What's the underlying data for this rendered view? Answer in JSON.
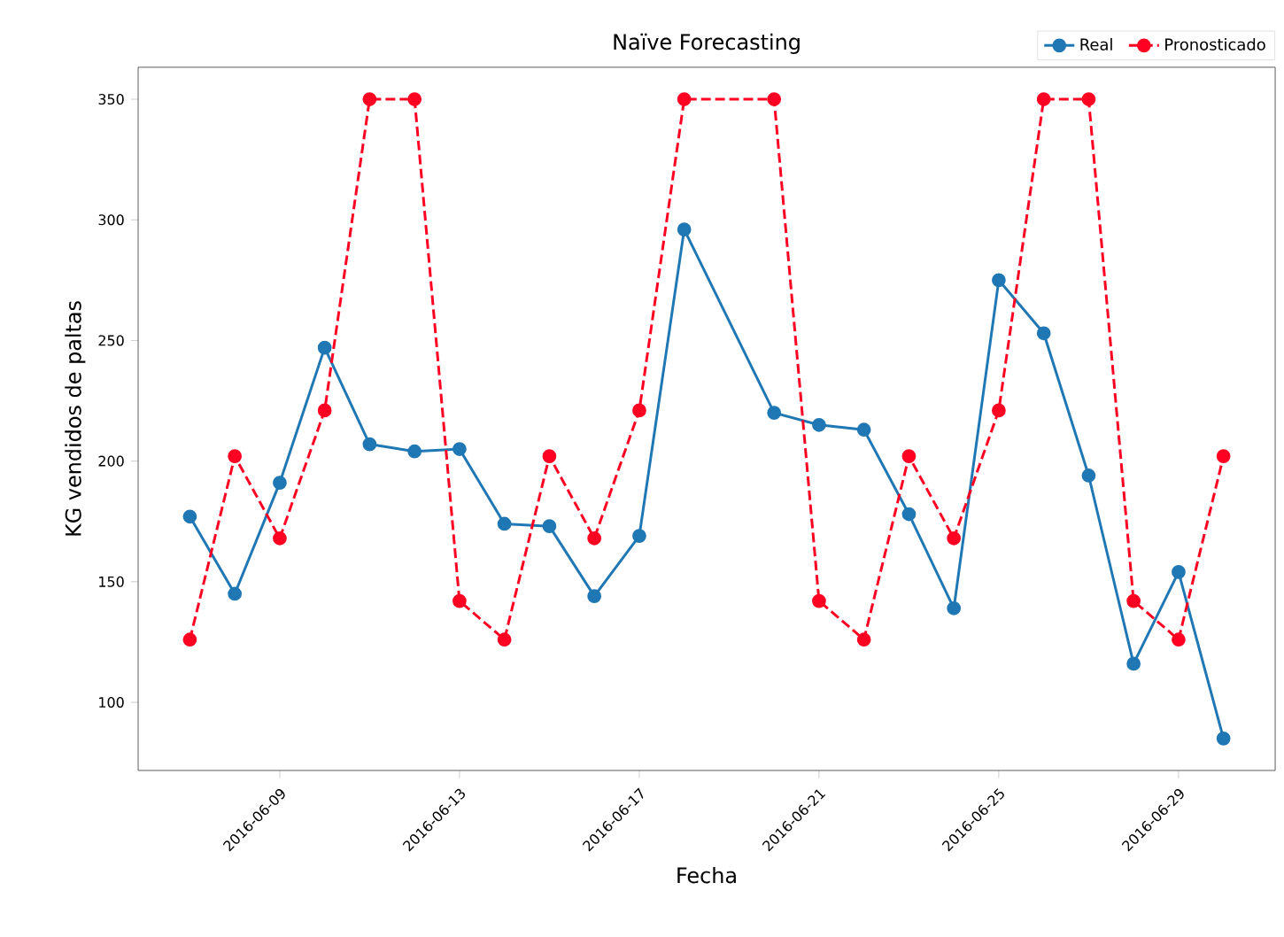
{
  "chart_data": {
    "type": "line",
    "title": "Naïve Forecasting",
    "xlabel": "Fecha",
    "ylabel": "KG vendidos de paltas",
    "x": [
      "2016-06-07",
      "2016-06-08",
      "2016-06-09",
      "2016-06-10",
      "2016-06-11",
      "2016-06-12",
      "2016-06-13",
      "2016-06-14",
      "2016-06-15",
      "2016-06-16",
      "2016-06-17",
      "2016-06-18",
      "2016-06-20",
      "2016-06-21",
      "2016-06-22",
      "2016-06-23",
      "2016-06-24",
      "2016-06-25",
      "2016-06-26",
      "2016-06-27",
      "2016-06-28",
      "2016-06-29",
      "2016-06-30"
    ],
    "series": [
      {
        "name": "Real",
        "color": "#1f77b4",
        "line_style": "solid",
        "values": [
          177,
          145,
          191,
          247,
          207,
          204,
          205,
          174,
          173,
          144,
          169,
          296,
          220,
          215,
          213,
          178,
          139,
          275,
          253,
          194,
          116,
          154,
          85
        ]
      },
      {
        "name": "Pronosticado",
        "color": "#ff0022",
        "line_style": "dashed",
        "values": [
          126,
          202,
          168,
          221,
          350,
          350,
          142,
          126,
          202,
          168,
          221,
          350,
          350,
          142,
          126,
          202,
          168,
          221,
          350,
          350,
          142,
          126,
          202
        ]
      }
    ],
    "marker": "circle",
    "legend": "top right",
    "grid": false,
    "xlim": [
      "2016-06-05T20:24",
      "2016-07-01T03:36"
    ],
    "xticks": [
      "2016-06-09",
      "2016-06-13",
      "2016-06-17",
      "2016-06-21",
      "2016-06-25",
      "2016-06-29"
    ],
    "ylim": [
      71.75,
      363.25
    ],
    "yticks": [
      100,
      150,
      200,
      250,
      300,
      350
    ]
  }
}
